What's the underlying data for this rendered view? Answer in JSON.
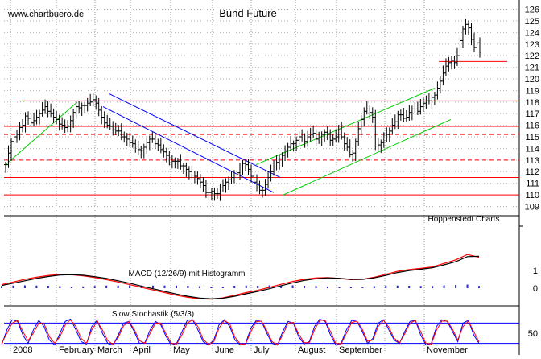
{
  "watermark": "www.chartbuero.de",
  "source_label": "Hoppenstedt Charts",
  "chart_data": [
    {
      "type": "ohlc",
      "title": "Bund Future",
      "ylim": [
        109,
        126
      ],
      "y_ticks": [
        109,
        110,
        111,
        112,
        113,
        114,
        115,
        116,
        117,
        118,
        119,
        120,
        121,
        122,
        123,
        124,
        125,
        126
      ],
      "months": [
        "2008",
        "February",
        "March",
        "April",
        "May",
        "June",
        "July",
        "August",
        "September",
        "",
        "November"
      ],
      "grid": true,
      "colors": {
        "bars": "#000000",
        "resistance": "#ff0000",
        "down_channel": "#0000ff",
        "up_channel": "#00cc00"
      },
      "horizontal_lines": [
        {
          "value": 121.5,
          "style": "solid"
        },
        {
          "value": 118.1,
          "style": "solid"
        },
        {
          "value": 115.9,
          "style": "solid"
        },
        {
          "value": 115.2,
          "style": "dashed"
        },
        {
          "value": 113.0,
          "style": "dashed"
        },
        {
          "value": 111.5,
          "style": "solid"
        },
        {
          "value": 110.0,
          "style": "solid"
        }
      ],
      "close_series": [
        112.6,
        113.6,
        114.6,
        115.0,
        115.2,
        115.8,
        116.0,
        116.8,
        116.6,
        116.2,
        116.4,
        116.7,
        117.0,
        117.3,
        117.6,
        117.2,
        117.0,
        116.7,
        116.5,
        116.1,
        116.0,
        115.8,
        115.9,
        116.4,
        117.1,
        117.6,
        117.5,
        117.7,
        117.7,
        117.9,
        118.0,
        118.2,
        117.9,
        117.3,
        116.7,
        116.2,
        116.0,
        115.9,
        115.6,
        115.5,
        115.5,
        115.0,
        115.0,
        114.8,
        114.5,
        114.4,
        114.2,
        113.9,
        113.8,
        114.1,
        114.5,
        114.8,
        114.8,
        114.4,
        114.3,
        113.9,
        113.7,
        113.4,
        113.1,
        112.9,
        112.9,
        112.9,
        112.5,
        112.5,
        112.2,
        112.0,
        111.7,
        111.6,
        111.4,
        111.1,
        110.8,
        110.2,
        110.2,
        110.3,
        110.1,
        110.1,
        110.6,
        110.8,
        111.1,
        111.3,
        111.5,
        111.7,
        111.9,
        112.4,
        112.7,
        112.6,
        112.2,
        111.6,
        111.1,
        110.6,
        110.4,
        110.4,
        110.9,
        111.5,
        112.0,
        112.4,
        112.8,
        113.1,
        113.4,
        113.8,
        114.1,
        114.4,
        114.4,
        114.7,
        115.0,
        114.9,
        114.6,
        115.0,
        115.2,
        115.3,
        114.8,
        114.9,
        115.2,
        115.4,
        115.2,
        114.7,
        114.8,
        115.0,
        115.6,
        115.0,
        114.4,
        114.1,
        113.5,
        113.6,
        114.6,
        115.7,
        116.5,
        117.2,
        117.4,
        117.1,
        116.7,
        114.2,
        114.3,
        114.5,
        114.9,
        115.2,
        115.5,
        116.0,
        116.3,
        116.9,
        116.9,
        116.6,
        116.7,
        117.1,
        117.4,
        117.4,
        117.2,
        117.6,
        117.9,
        118.1,
        118.1,
        118.4,
        118.6,
        119.2,
        119.8,
        120.5,
        121.1,
        121.4,
        121.6,
        121.4,
        122.0,
        123.3,
        124.3,
        124.7,
        124.4,
        123.4,
        122.7,
        123.1,
        122.3
      ],
      "channels": [
        {
          "name": "down-channel-upper",
          "color": "blue",
          "x": [
            136,
            348
          ],
          "y": [
            118.7,
            111.5
          ]
        },
        {
          "name": "down-channel-lower",
          "color": "blue",
          "x": [
            128,
            340
          ],
          "y": [
            117.6,
            110.2
          ]
        },
        {
          "name": "up-channel-lower",
          "color": "green",
          "x": [
            352,
            560
          ],
          "y": [
            110.0,
            116.5
          ]
        },
        {
          "name": "up-channel-upper",
          "color": "green",
          "x": [
            318,
            540
          ],
          "y": [
            112.6,
            119.2
          ]
        },
        {
          "name": "early-up-line",
          "color": "green",
          "x": [
            7,
            96
          ],
          "y": [
            112.6,
            118.0
          ]
        }
      ]
    },
    {
      "type": "line",
      "title": "MACD (12/26/9) mit Histogramm",
      "y_ticks": [
        1,
        0
      ],
      "series": [
        {
          "name": "MACD",
          "color": "#ff0000",
          "values": [
            0.2,
            0.35,
            0.5,
            0.62,
            0.72,
            0.78,
            0.76,
            0.7,
            0.6,
            0.48,
            0.35,
            0.2,
            0.05,
            -0.1,
            -0.25,
            -0.4,
            -0.52,
            -0.6,
            -0.62,
            -0.55,
            -0.4,
            -0.25,
            -0.12,
            0.05,
            0.22,
            0.38,
            0.5,
            0.58,
            0.6,
            0.55,
            0.48,
            0.5,
            0.62,
            0.78,
            0.95,
            1.05,
            1.12,
            1.2,
            1.4,
            1.6,
            1.9,
            1.75
          ]
        },
        {
          "name": "Signal",
          "color": "#000000",
          "values": [
            0.15,
            0.28,
            0.42,
            0.55,
            0.66,
            0.74,
            0.76,
            0.73,
            0.65,
            0.55,
            0.42,
            0.28,
            0.12,
            -0.03,
            -0.18,
            -0.33,
            -0.46,
            -0.56,
            -0.6,
            -0.57,
            -0.46,
            -0.32,
            -0.18,
            -0.03,
            0.14,
            0.3,
            0.44,
            0.53,
            0.58,
            0.56,
            0.5,
            0.5,
            0.58,
            0.72,
            0.88,
            0.99,
            1.07,
            1.15,
            1.32,
            1.5,
            1.78,
            1.8
          ]
        }
      ]
    },
    {
      "type": "line",
      "title": "Slow Stochastik (5/3/3)",
      "y_ticks": [
        50
      ],
      "reference_lines": [
        80,
        20
      ],
      "series": [
        {
          "name": "%K",
          "color": "#0000ff",
          "values": [
            15,
            60,
            90,
            85,
            45,
            20,
            60,
            88,
            70,
            30,
            15,
            50,
            85,
            92,
            60,
            25,
            18,
            70,
            88,
            50,
            20,
            15,
            45,
            80,
            85,
            55,
            20,
            22,
            60,
            85,
            75,
            40,
            15,
            20,
            55,
            88,
            90,
            60,
            25,
            15,
            30,
            75,
            90,
            70,
            30,
            15,
            20,
            65,
            88,
            85,
            50,
            20,
            15,
            55,
            85,
            80,
            40,
            18,
            25,
            70,
            92,
            85,
            45,
            15,
            20,
            60,
            88,
            85,
            55,
            20,
            35,
            80,
            90,
            60,
            30,
            20,
            55,
            85,
            88,
            45,
            15,
            20,
            70,
            90,
            85,
            55,
            25,
            80,
            88,
            45,
            20
          ]
        },
        {
          "name": "%D",
          "color": "#ff0000",
          "values": [
            20,
            50,
            80,
            88,
            55,
            28,
            50,
            80,
            78,
            40,
            20,
            40,
            75,
            90,
            70,
            35,
            20,
            60,
            85,
            60,
            28,
            17,
            38,
            72,
            85,
            62,
            28,
            20,
            50,
            80,
            80,
            48,
            20,
            18,
            45,
            80,
            90,
            70,
            32,
            17,
            25,
            65,
            88,
            78,
            38,
            18,
            18,
            55,
            84,
            86,
            58,
            25,
            16,
            45,
            80,
            82,
            48,
            22,
            22,
            60,
            88,
            88,
            55,
            20,
            18,
            50,
            82,
            86,
            62,
            26,
            30,
            70,
            88,
            68,
            35,
            22,
            48,
            80,
            88,
            55,
            20,
            18,
            60,
            86,
            86,
            62,
            30,
            70,
            86,
            55,
            24
          ]
        }
      ]
    }
  ]
}
